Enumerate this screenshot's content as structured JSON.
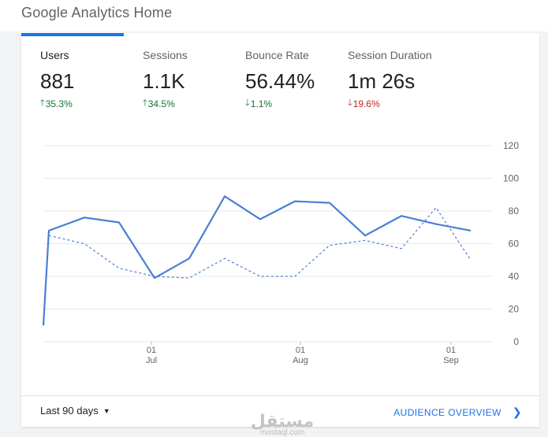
{
  "page": {
    "title": "Google Analytics Home"
  },
  "metrics": [
    {
      "label": "Users",
      "value": "881",
      "change": "35.3%",
      "direction": "up"
    },
    {
      "label": "Sessions",
      "value": "1.1K",
      "change": "34.5%",
      "direction": "up"
    },
    {
      "label": "Bounce Rate",
      "value": "56.44%",
      "change": "1.1%",
      "direction": "down"
    },
    {
      "label": "Session Duration",
      "value": "1m 26s",
      "change": "19.6%",
      "direction": "down"
    }
  ],
  "colors": {
    "accent": "#1a73e8",
    "positive": "#137333",
    "negative": "#c5221f",
    "series": "#4a7fd4"
  },
  "chart_data": {
    "type": "line",
    "ylim": [
      0,
      120
    ],
    "yticks": [
      0,
      20,
      40,
      60,
      80,
      100,
      120
    ],
    "xticks": [
      {
        "day": "01",
        "month": "Jul"
      },
      {
        "day": "01",
        "month": "Aug"
      },
      {
        "day": "01",
        "month": "Sep"
      }
    ],
    "grid": true,
    "series": [
      {
        "style": "solid",
        "values": [
          10,
          68,
          76,
          73,
          39,
          51,
          89,
          75,
          86,
          85,
          65,
          77,
          72,
          68
        ]
      },
      {
        "style": "dashed",
        "values": [
          65,
          60,
          45,
          40,
          39,
          51,
          40,
          40,
          59,
          62,
          57,
          82,
          50
        ]
      }
    ]
  },
  "footer": {
    "date_range": "Last 90 days",
    "link": "AUDIENCE OVERVIEW",
    "watermark_ar": "مستقل",
    "watermark_en": "mostaql.com"
  }
}
